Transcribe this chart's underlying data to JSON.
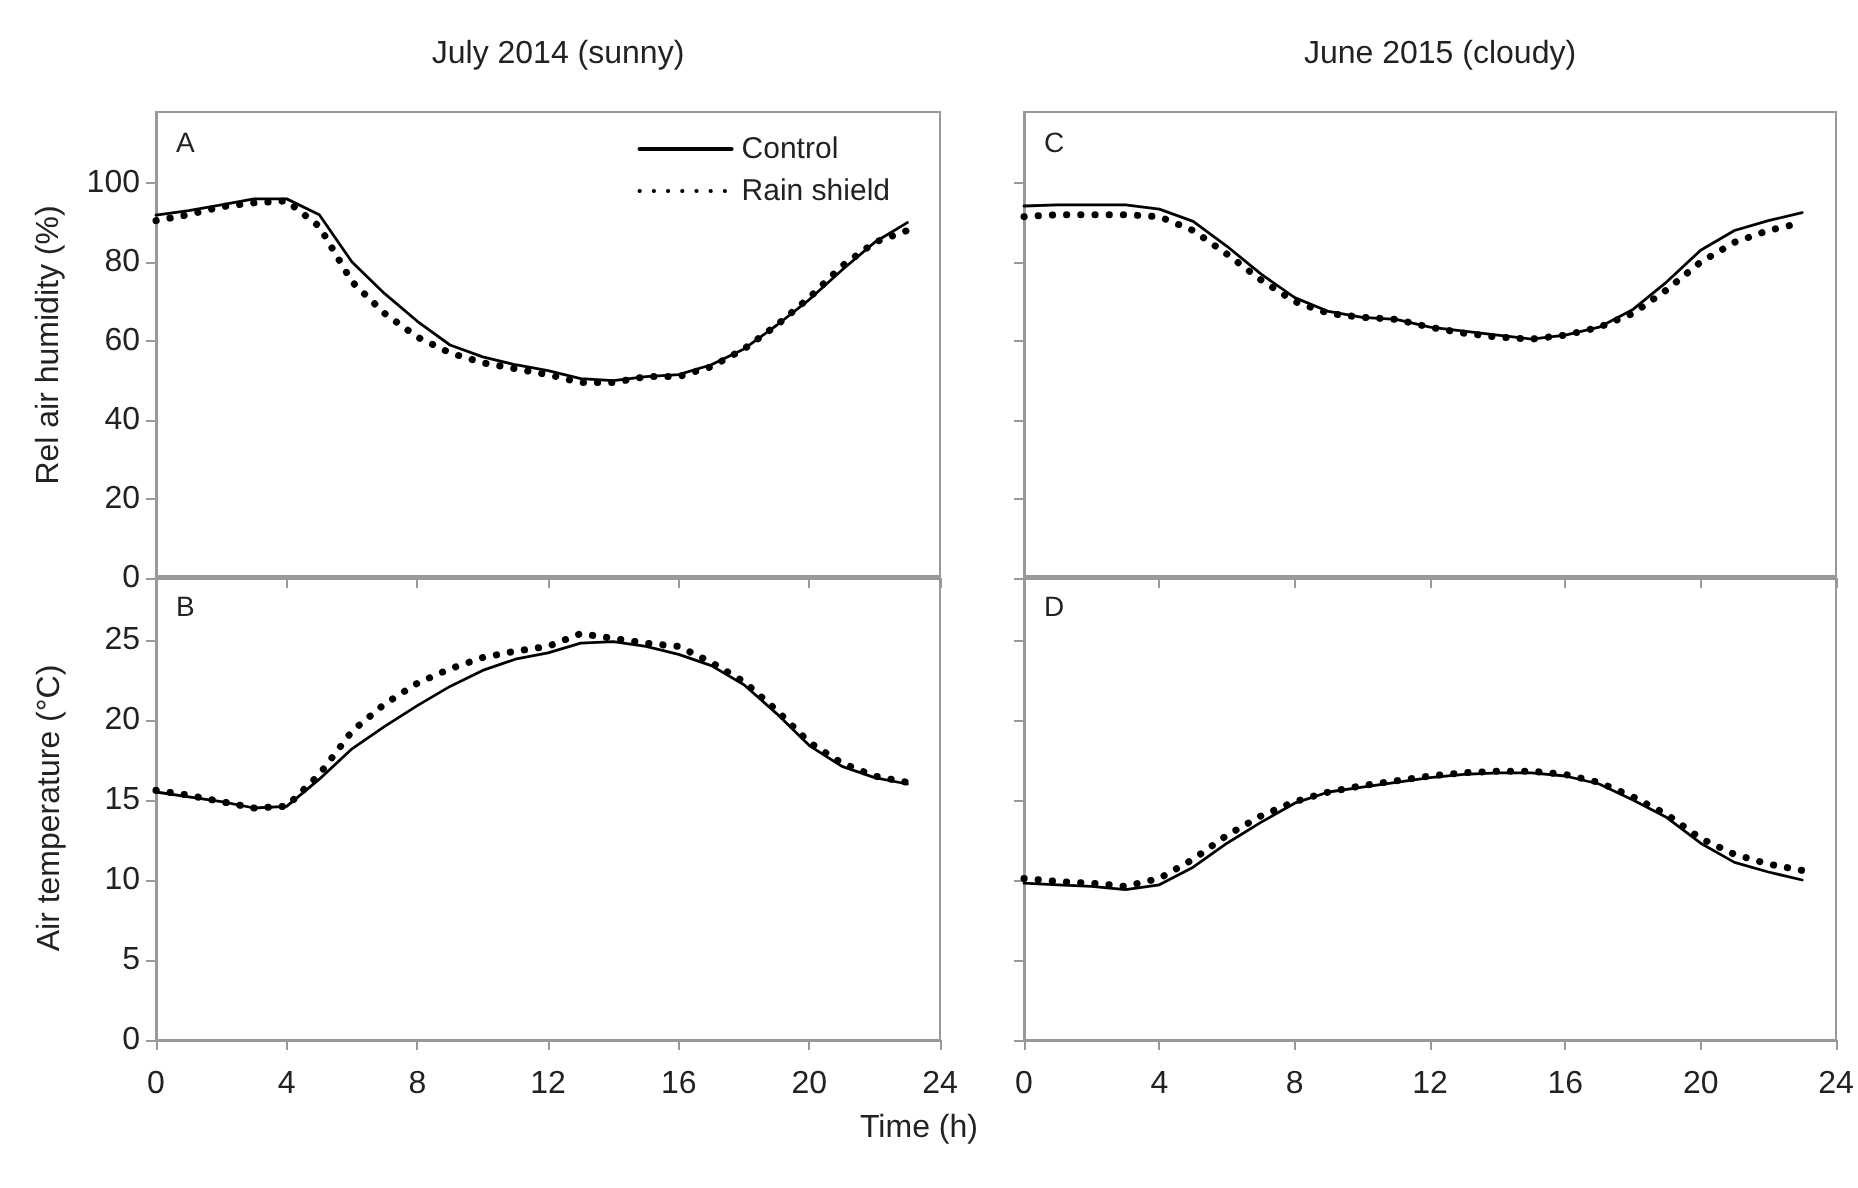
{
  "chart_data": [
    {
      "type": "line",
      "title": "July 2014 (sunny)",
      "ylabel": "Rel air humidity (%)",
      "annotations": [
        "A"
      ],
      "x": [
        0,
        1,
        2,
        3,
        4,
        5,
        6,
        7,
        8,
        9,
        10,
        11,
        12,
        13,
        14,
        15,
        16,
        17,
        18,
        19,
        20,
        21,
        22,
        23
      ],
      "xlim": [
        0,
        24
      ],
      "xticks": [
        0,
        4,
        8,
        12,
        16,
        20,
        24
      ],
      "ylim": [
        0,
        118
      ],
      "yticks": [
        0,
        20,
        40,
        60,
        80,
        100
      ],
      "tick_labels": "y",
      "legend": "top right",
      "series": [
        {
          "name": "Control",
          "color": "#000000",
          "line_style": "solid",
          "values": [
            91.9,
            93,
            94.5,
            96,
            96,
            92,
            80,
            72,
            65,
            59,
            56,
            54,
            52.5,
            50.5,
            50,
            51,
            51.5,
            54,
            58,
            64,
            70.5,
            78,
            85,
            90
          ]
        },
        {
          "name": "Rain shield",
          "color": "#000000",
          "line_style": "dotted",
          "values": [
            90.5,
            92,
            94,
            95,
            95.5,
            89,
            75,
            67,
            61,
            57,
            54.5,
            53,
            51.5,
            49.5,
            49.5,
            51,
            51,
            53.5,
            58,
            64,
            71,
            79,
            85,
            88
          ]
        }
      ]
    },
    {
      "type": "line",
      "title": "June 2015 (cloudy)",
      "annotations": [
        "C"
      ],
      "x": [
        0,
        1,
        2,
        3,
        4,
        5,
        6,
        7,
        8,
        9,
        10,
        11,
        12,
        13,
        14,
        15,
        16,
        17,
        18,
        19,
        20,
        21,
        22,
        23
      ],
      "xlim": [
        0,
        24
      ],
      "xticks": [
        0,
        4,
        8,
        12,
        16,
        20,
        24
      ],
      "ylim": [
        0,
        118
      ],
      "yticks": [
        0,
        20,
        40,
        60,
        80,
        100
      ],
      "tick_labels": false,
      "series": [
        {
          "color": "#000000",
          "line_style": "solid",
          "values": [
            94.2,
            94.5,
            94.5,
            94.5,
            93.4,
            90.3,
            84,
            77,
            71,
            67.5,
            66,
            65.5,
            63.5,
            62.5,
            61.5,
            60.5,
            61.5,
            63.5,
            68,
            75,
            83,
            88,
            90.5,
            92.5
          ]
        },
        {
          "color": "#000000",
          "line_style": "dotted",
          "values": [
            91.5,
            92,
            92,
            92,
            91.5,
            88,
            82,
            75.5,
            70,
            67,
            66,
            65.5,
            63.5,
            62,
            61,
            60.5,
            61.5,
            63.5,
            67,
            73,
            80,
            85,
            88,
            90
          ]
        }
      ]
    },
    {
      "type": "line",
      "ylabel": "Air temperature (°C)",
      "xlabel": "Time (h)",
      "annotations": [
        "B"
      ],
      "x": [
        0,
        1,
        2,
        3,
        4,
        5,
        6,
        7,
        8,
        9,
        10,
        11,
        12,
        13,
        14,
        15,
        16,
        17,
        18,
        19,
        20,
        21,
        22,
        23
      ],
      "xlim": [
        0,
        24
      ],
      "xticks": [
        0,
        4,
        8,
        12,
        16,
        20,
        24
      ],
      "ylim": [
        0,
        29
      ],
      "yticks": [
        0,
        5,
        10,
        15,
        20,
        25
      ],
      "series": [
        {
          "color": "#000000",
          "line_style": "solid",
          "values": [
            15.5,
            15.2,
            14.9,
            14.5,
            14.6,
            16.3,
            18.2,
            19.6,
            20.9,
            22.1,
            23.1,
            23.8,
            24.2,
            24.8,
            24.9,
            24.6,
            24.1,
            23.4,
            22.2,
            20.4,
            18.4,
            17.1,
            16.4,
            16.0
          ]
        },
        {
          "color": "#000000",
          "line_style": "dotted",
          "values": [
            15.6,
            15.3,
            14.9,
            14.5,
            14.6,
            16.6,
            19.3,
            21.0,
            22.3,
            23.2,
            23.9,
            24.3,
            24.6,
            25.4,
            25.1,
            24.8,
            24.6,
            23.6,
            22.4,
            20.6,
            18.6,
            17.3,
            16.5,
            16.1
          ]
        }
      ]
    },
    {
      "type": "line",
      "annotations": [
        "D"
      ],
      "x": [
        0,
        1,
        2,
        3,
        4,
        5,
        6,
        7,
        8,
        9,
        10,
        11,
        12,
        13,
        14,
        15,
        16,
        17,
        18,
        19,
        20,
        21,
        22,
        23
      ],
      "xlim": [
        0,
        24
      ],
      "xticks": [
        0,
        4,
        8,
        12,
        16,
        20,
        24
      ],
      "ylim": [
        0,
        29
      ],
      "yticks": [
        0,
        5,
        10,
        15,
        20,
        25
      ],
      "tick_labels": "x",
      "series": [
        {
          "color": "#000000",
          "line_style": "solid",
          "values": [
            9.8,
            9.7,
            9.6,
            9.4,
            9.7,
            10.8,
            12.3,
            13.6,
            14.8,
            15.5,
            15.8,
            16.1,
            16.4,
            16.6,
            16.7,
            16.7,
            16.5,
            16.0,
            15.0,
            13.9,
            12.3,
            11.1,
            10.5,
            10.0
          ]
        },
        {
          "color": "#000000",
          "line_style": "dotted",
          "values": [
            10.1,
            9.9,
            9.8,
            9.6,
            10.1,
            11.3,
            12.8,
            14.0,
            14.9,
            15.5,
            15.9,
            16.2,
            16.5,
            16.7,
            16.8,
            16.8,
            16.6,
            16.1,
            15.2,
            14.1,
            12.6,
            11.6,
            11.0,
            10.6
          ]
        }
      ]
    }
  ]
}
